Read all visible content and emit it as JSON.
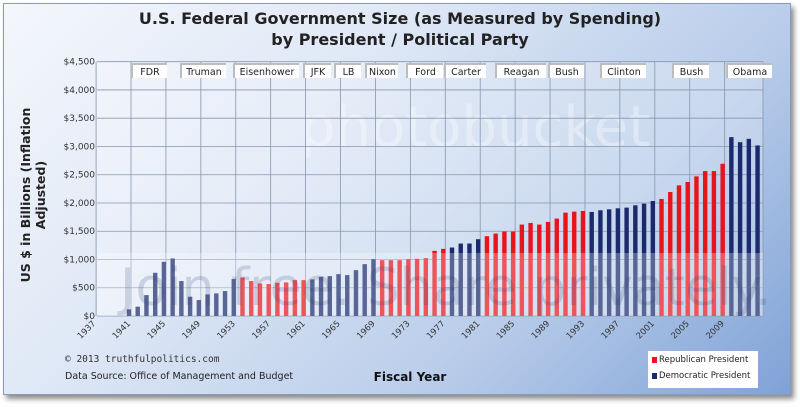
{
  "colors": {
    "republican": "#e8141c",
    "democratic": "#1a2a6c"
  },
  "watermark": {
    "top": "photobucket",
    "bottom": "Join free. Share privately."
  },
  "footer": {
    "copyright": "© 2013  truthfulpolitics.com",
    "source": "Data Source:  Office of Management and Budget"
  },
  "chart_data": {
    "type": "bar",
    "title": "U.S. Federal Government Size (as Measured by Spending)",
    "subtitle": "by President / Political Party",
    "xlabel": "Fiscal Year",
    "ylabel": "US $ in Billions (Inflation Adjusted)",
    "ylim": [
      0,
      4500
    ],
    "yticks": [
      "$0",
      "$500",
      "$1,000",
      "$1,500",
      "$2,000",
      "$2,500",
      "$3,000",
      "$3,500",
      "$4,000",
      "$4,500"
    ],
    "xticks": [
      "1937",
      "1941",
      "1945",
      "1949",
      "1953",
      "1957",
      "1961",
      "1965",
      "1969",
      "1973",
      "1977",
      "1981",
      "1985",
      "1989",
      "1993",
      "1997",
      "2001",
      "2005",
      "2009"
    ],
    "grid": true,
    "legend_position": "bottom-right",
    "series": [
      {
        "name": "Republican President",
        "party": "R"
      },
      {
        "name": "Democratic President",
        "party": "D"
      }
    ],
    "years": [
      1940,
      1941,
      1942,
      1943,
      1944,
      1945,
      1946,
      1947,
      1948,
      1949,
      1950,
      1951,
      1952,
      1953,
      1954,
      1955,
      1956,
      1957,
      1958,
      1959,
      1960,
      1961,
      1962,
      1963,
      1964,
      1965,
      1966,
      1967,
      1968,
      1969,
      1970,
      1971,
      1972,
      1973,
      1974,
      1975,
      1976,
      1977,
      1978,
      1979,
      1980,
      1981,
      1982,
      1983,
      1984,
      1985,
      1986,
      1987,
      1988,
      1989,
      1990,
      1991,
      1992,
      1993,
      1994,
      1995,
      1996,
      1997,
      1998,
      1999,
      2000,
      2001,
      2002,
      2003,
      2004,
      2005,
      2006,
      2007,
      2008,
      2009,
      2010,
      2011,
      2012
    ],
    "values": [
      118,
      165,
      370,
      765,
      959,
      1018,
      618,
      341,
      282,
      382,
      400,
      441,
      653,
      682,
      618,
      576,
      565,
      588,
      594,
      635,
      635,
      647,
      694,
      706,
      741,
      724,
      812,
      918,
      1006,
      988,
      988,
      988,
      1006,
      1012,
      1024,
      1153,
      1188,
      1212,
      1282,
      1282,
      1359,
      1412,
      1459,
      1494,
      1494,
      1618,
      1647,
      1618,
      1665,
      1724,
      1829,
      1847,
      1859,
      1841,
      1871,
      1888,
      1906,
      1918,
      1959,
      1988,
      2035,
      2071,
      2194,
      2312,
      2371,
      2471,
      2565,
      2565,
      2694,
      3165,
      3076,
      3135,
      3018
    ],
    "party": [
      "D",
      "D",
      "D",
      "D",
      "D",
      "D",
      "D",
      "D",
      "D",
      "D",
      "D",
      "D",
      "D",
      "R",
      "R",
      "R",
      "R",
      "R",
      "R",
      "R",
      "R",
      "D",
      "D",
      "D",
      "D",
      "D",
      "D",
      "D",
      "D",
      "R",
      "R",
      "R",
      "R",
      "R",
      "R",
      "R",
      "R",
      "D",
      "D",
      "D",
      "D",
      "R",
      "R",
      "R",
      "R",
      "R",
      "R",
      "R",
      "R",
      "R",
      "R",
      "R",
      "R",
      "D",
      "D",
      "D",
      "D",
      "D",
      "D",
      "D",
      "D",
      "R",
      "R",
      "R",
      "R",
      "R",
      "R",
      "R",
      "R",
      "D",
      "D",
      "D",
      "D"
    ],
    "presidents": [
      "FDR",
      "Truman",
      "Eisenhower",
      "JFK",
      "LB",
      "Nixon",
      "Ford",
      "Carter",
      "Reagan",
      "Bush",
      "Clinton",
      "Bush",
      "Obama"
    ]
  }
}
